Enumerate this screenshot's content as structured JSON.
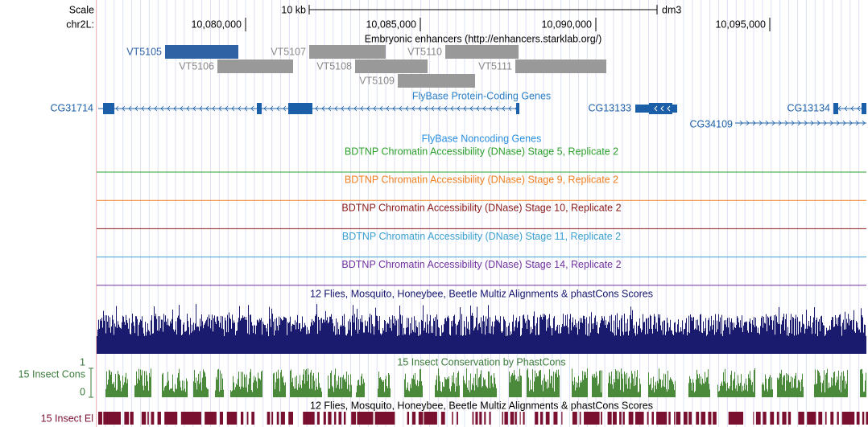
{
  "ruler": {
    "scale_label": "Scale",
    "scale_bar_label": "10 kb",
    "assembly": "dm3",
    "chrom_label": "chr2L:",
    "ticks": [
      "10,080,000",
      "10,085,000",
      "10,090,000",
      "10,095,000"
    ]
  },
  "tracks": {
    "enhancers": {
      "title": "Embryonic enhancers (http://enhancers.starklab.org/)",
      "items": [
        "VT5105",
        "VT5107",
        "VT5110",
        "VT5106",
        "VT5108",
        "VT5111",
        "VT5109"
      ]
    },
    "protein_coding": {
      "title": "FlyBase Protein-Coding Genes",
      "genes": [
        "CG31714",
        "CG13133",
        "CG13134",
        "CG34109"
      ]
    },
    "noncoding": {
      "title": "FlyBase Noncoding Genes"
    },
    "dnase": [
      "BDTNP Chromatin Accessibility (DNase) Stage 5, Replicate 2",
      "BDTNP Chromatin Accessibility (DNase) Stage 9, Replicate 2",
      "BDTNP Chromatin Accessibility (DNase) Stage 10, Replicate 2",
      "BDTNP Chromatin Accessibility (DNase) Stage 11, Replicate 2",
      "BDTNP Chromatin Accessibility (DNase) Stage 14, Replicate 2"
    ],
    "multiz": {
      "title": "12 Flies, Mosquito, Honeybee, Beetle Multiz Alignments & phastCons Scores"
    },
    "phastcons": {
      "title": "15 Insect Conservation by PhastCons",
      "short_label": "15 Insect Cons",
      "axis_max": "1",
      "axis_min": "0"
    },
    "elements": {
      "title": "12 Flies, Mosquito, Honeybee, Beetle Multiz Alignments & phastCons Scores",
      "short_label": "15 Insect El"
    }
  }
}
